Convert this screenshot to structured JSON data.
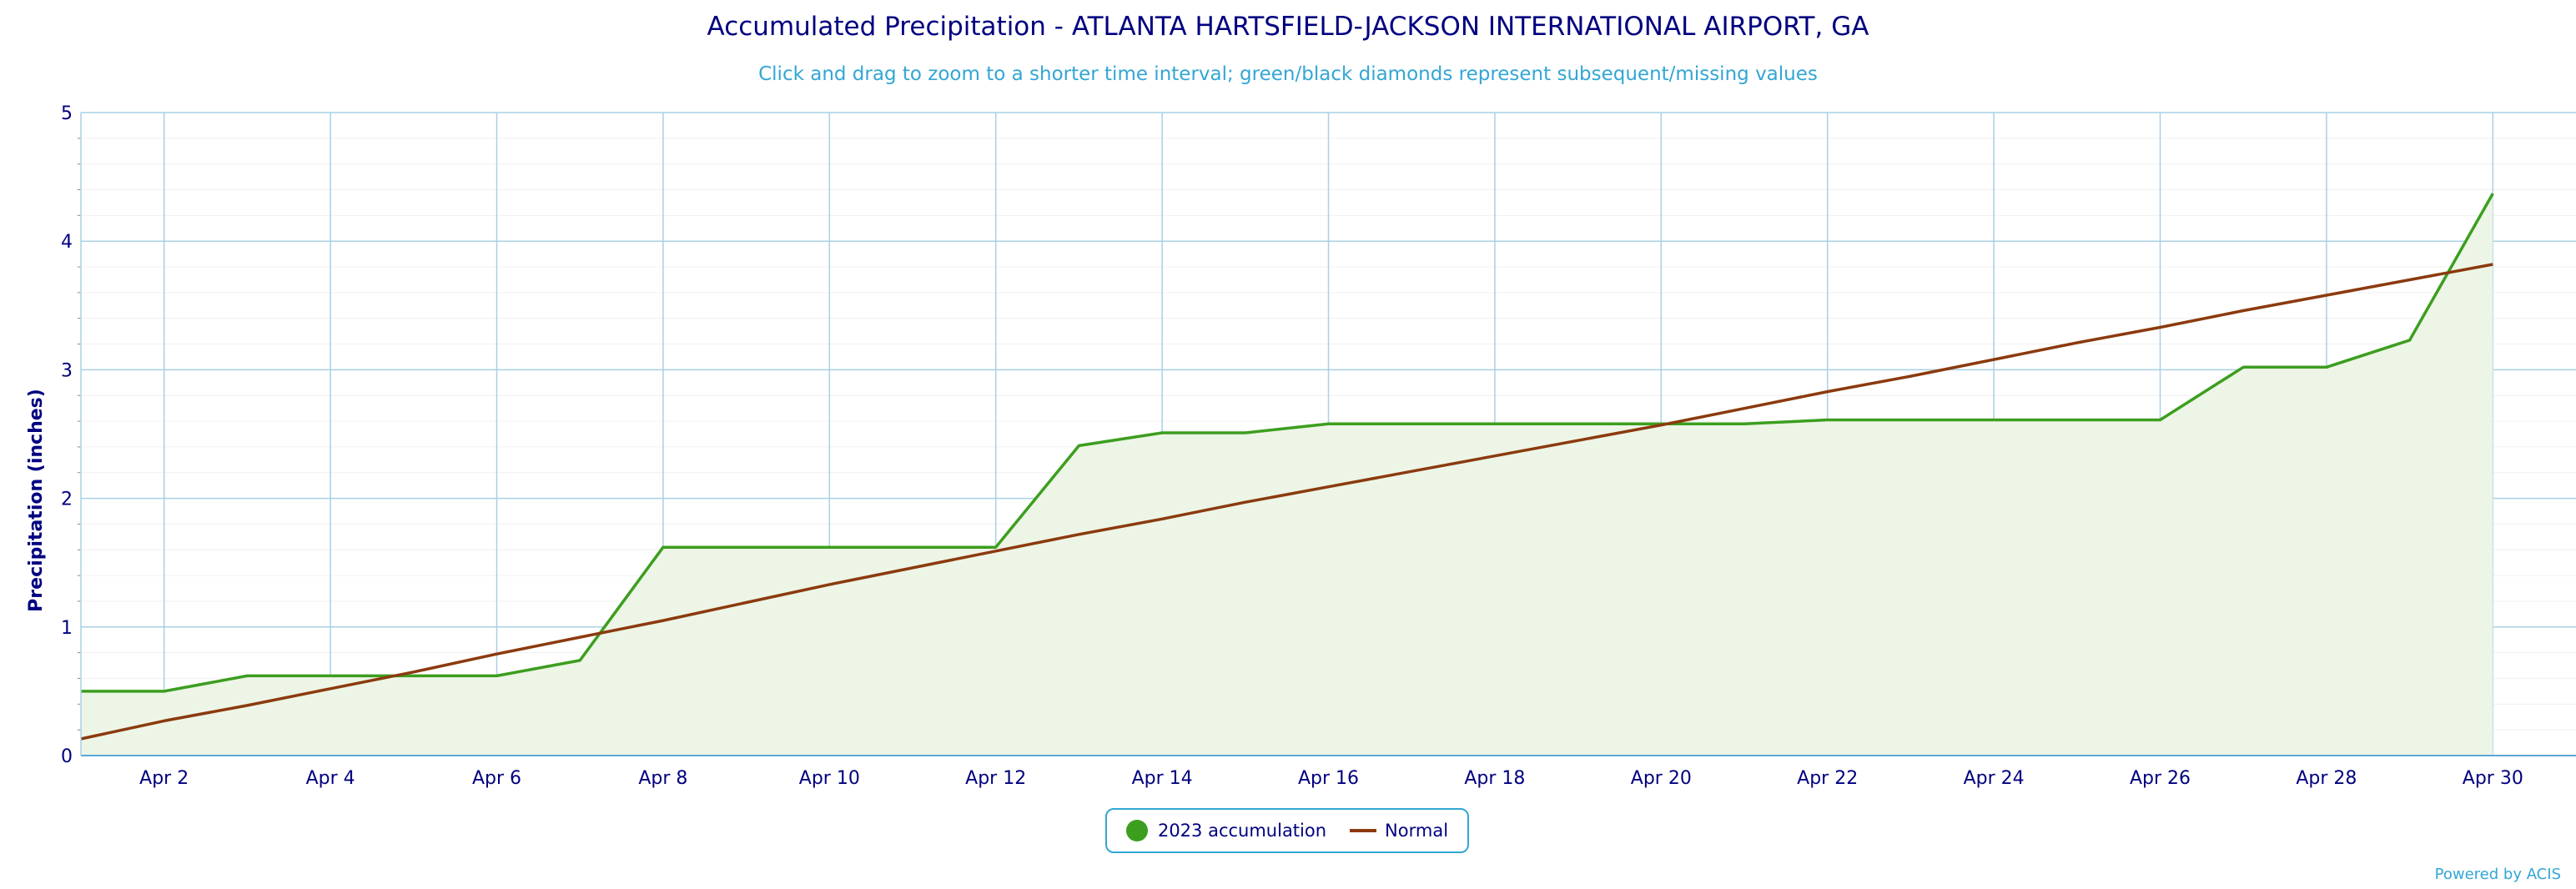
{
  "chart_data": {
    "type": "line",
    "title": "Accumulated Precipitation - ATLANTA HARTSFIELD-JACKSON INTERNATIONAL AIRPORT, GA",
    "subtitle": "Click and drag to zoom to a shorter time interval; green/black diamonds represent subsequent/missing values",
    "ylabel": "Precipitation (inches)",
    "xlabel": "",
    "ylim": [
      0,
      5
    ],
    "xlim": [
      1,
      31
    ],
    "x_unit": "day of April",
    "yticks": [
      0,
      1,
      2,
      3,
      4,
      5
    ],
    "x_ticks": [
      {
        "x": 2,
        "label": "Apr 2"
      },
      {
        "x": 4,
        "label": "Apr 4"
      },
      {
        "x": 6,
        "label": "Apr 6"
      },
      {
        "x": 8,
        "label": "Apr 8"
      },
      {
        "x": 10,
        "label": "Apr 10"
      },
      {
        "x": 12,
        "label": "Apr 12"
      },
      {
        "x": 14,
        "label": "Apr 14"
      },
      {
        "x": 16,
        "label": "Apr 16"
      },
      {
        "x": 18,
        "label": "Apr 18"
      },
      {
        "x": 20,
        "label": "Apr 20"
      },
      {
        "x": 22,
        "label": "Apr 22"
      },
      {
        "x": 24,
        "label": "Apr 24"
      },
      {
        "x": 26,
        "label": "Apr 26"
      },
      {
        "x": 28,
        "label": "Apr 28"
      },
      {
        "x": 30,
        "label": "Apr 30"
      }
    ],
    "grid": true,
    "legend_position": "bottom-center",
    "series": [
      {
        "name": "2023 accumulation",
        "color": "#3c9e1f",
        "fill": "#edf5e6",
        "x": [
          1,
          2,
          3,
          4,
          5,
          6,
          7,
          8,
          9,
          10,
          11,
          12,
          13,
          14,
          15,
          16,
          17,
          18,
          19,
          20,
          21,
          22,
          23,
          24,
          25,
          26,
          27,
          28,
          29,
          30
        ],
        "values": [
          0.5,
          0.5,
          0.62,
          0.62,
          0.62,
          0.62,
          0.74,
          1.62,
          1.62,
          1.62,
          1.62,
          1.62,
          2.41,
          2.51,
          2.51,
          2.58,
          2.58,
          2.58,
          2.58,
          2.58,
          2.58,
          2.61,
          2.61,
          2.61,
          2.61,
          2.61,
          3.02,
          3.02,
          3.23,
          4.37
        ]
      },
      {
        "name": "Normal",
        "color": "#8b3a0e",
        "x": [
          1,
          2,
          3,
          4,
          5,
          6,
          7,
          8,
          9,
          10,
          11,
          12,
          13,
          14,
          15,
          16,
          17,
          18,
          19,
          20,
          21,
          22,
          23,
          24,
          25,
          26,
          27,
          28,
          29,
          30
        ],
        "values": [
          0.13,
          0.27,
          0.39,
          0.52,
          0.65,
          0.79,
          0.92,
          1.05,
          1.19,
          1.33,
          1.46,
          1.59,
          1.72,
          1.84,
          1.97,
          2.09,
          2.21,
          2.33,
          2.45,
          2.57,
          2.7,
          2.83,
          2.95,
          3.08,
          3.21,
          3.33,
          3.46,
          3.58,
          3.7,
          3.82
        ]
      }
    ]
  },
  "legend": {
    "items": [
      {
        "label": "2023 accumulation",
        "color": "#3c9e1f"
      },
      {
        "label": "Normal",
        "color": "#8b3a0e"
      }
    ]
  },
  "footer": {
    "credit": "Powered by ACIS"
  }
}
